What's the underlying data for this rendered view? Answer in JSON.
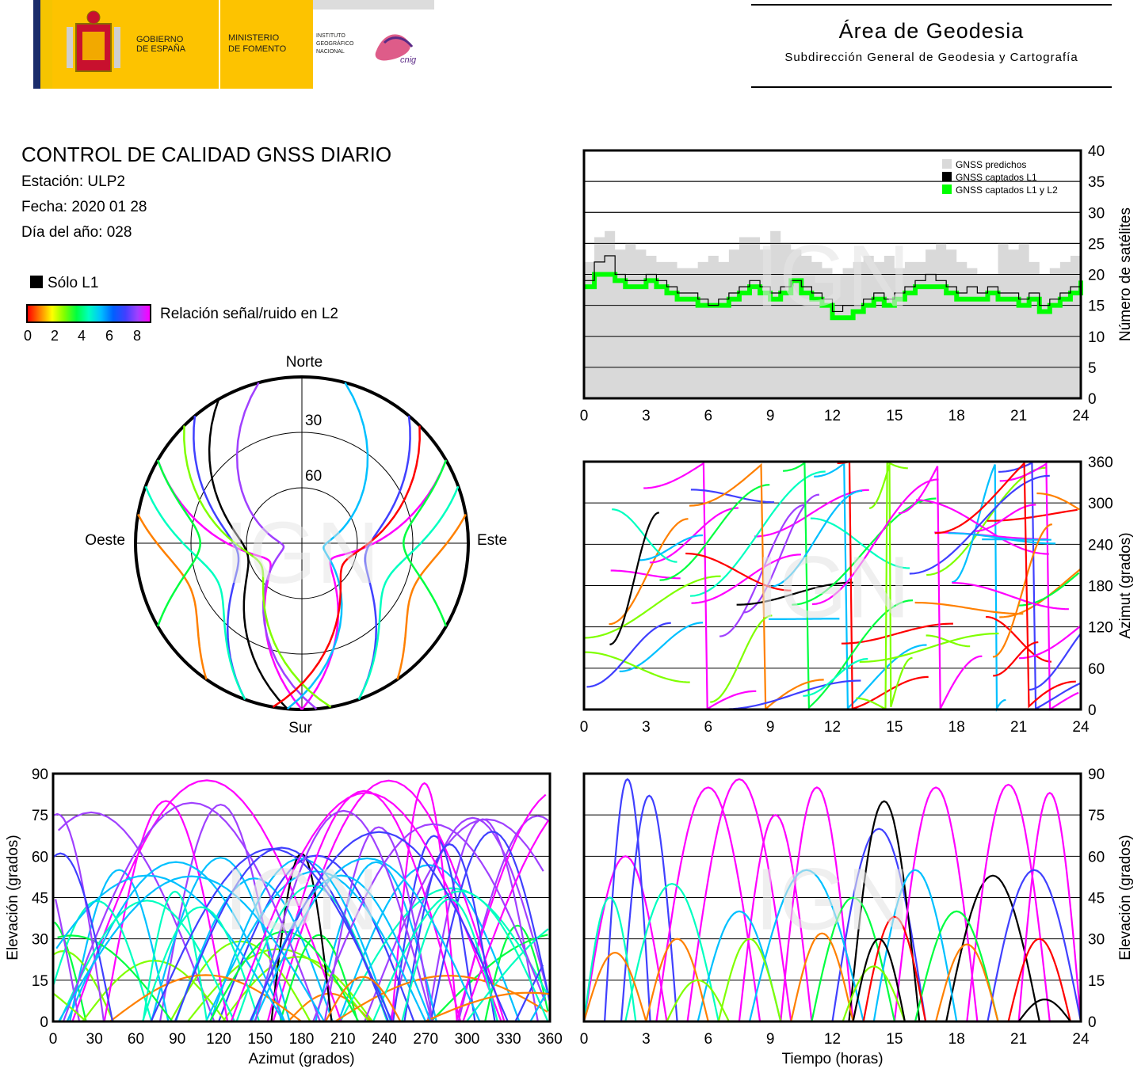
{
  "header": {
    "gov_line1": "GOBIERNO",
    "gov_line2": "DE ESPAÑA",
    "min_line1": "MINISTERIO",
    "min_line2": "DE FOMENTO",
    "inst_line1": "INSTITUTO",
    "inst_line2": "GEOGRÁFICO",
    "inst_line3": "NACIONAL",
    "cnig": "cnig",
    "area_title": "Área de Geodesia",
    "area_subtitle": "Subdirección General de Geodesia y Cartografía"
  },
  "info": {
    "title": "CONTROL DE CALIDAD GNSS DIARIO",
    "station": "Estación: ULP2",
    "date": "Fecha: 2020 01 28",
    "doy": "Día del año: 028",
    "legend_l1": "Sólo L1",
    "snr_label": "Relación señal/ruido en L2",
    "snr_ticks": [
      "0",
      "2",
      "4",
      "6",
      "8"
    ]
  },
  "colors": {
    "predicted": "#d9d9d9",
    "captured_l1": "#000000",
    "captured_l1_l2": "#00ff00",
    "snr_scale": [
      "#ff0000",
      "#ff8000",
      "#ffff00",
      "#80ff00",
      "#00ff40",
      "#00ffc0",
      "#00c0ff",
      "#0060ff",
      "#4040ff",
      "#a040ff",
      "#ff00ff"
    ]
  },
  "watermark": "IGN",
  "chart_data": [
    {
      "type": "area",
      "id": "satellite-count",
      "xlabel": "",
      "ylabel": "Número de satélites",
      "xlim": [
        0,
        24
      ],
      "ylim": [
        0,
        40
      ],
      "xticks": [
        0,
        3,
        6,
        9,
        12,
        15,
        18,
        21,
        24
      ],
      "yticks": [
        0,
        5,
        10,
        15,
        20,
        25,
        30,
        35,
        40
      ],
      "grid": true,
      "legend_position": "top-right",
      "series": [
        {
          "name": "GNSS predichos",
          "x": [
            0,
            0.5,
            1,
            1.5,
            2,
            2.5,
            3,
            3.5,
            4,
            4.5,
            5,
            5.5,
            6,
            6.5,
            7,
            7.5,
            8,
            8.5,
            9,
            9.5,
            10,
            10.5,
            11,
            11.5,
            12,
            12.5,
            13,
            13.5,
            14,
            14.5,
            15,
            15.5,
            16,
            16.5,
            17,
            17.5,
            18,
            18.5,
            19,
            19.5,
            20,
            20.5,
            21,
            21.5,
            22,
            22.5,
            23,
            23.5,
            24
          ],
          "values": [
            22,
            26,
            27,
            24,
            25,
            24,
            23,
            22,
            22,
            21,
            21,
            22,
            23,
            22,
            24,
            26,
            26,
            24,
            27,
            25,
            24,
            23,
            22,
            21,
            20,
            21,
            22,
            23,
            22,
            23,
            21,
            22,
            22,
            24,
            25,
            24,
            22,
            21,
            20,
            20,
            25,
            24,
            25,
            22,
            20,
            21,
            22,
            23,
            21
          ]
        },
        {
          "name": "GNSS captados L1",
          "x": [
            0,
            0.5,
            1,
            1.5,
            2,
            2.5,
            3,
            3.5,
            4,
            4.5,
            5,
            5.5,
            6,
            6.5,
            7,
            7.5,
            8,
            8.5,
            9,
            9.5,
            10,
            10.5,
            11,
            11.5,
            12,
            12.5,
            13,
            13.5,
            14,
            14.5,
            15,
            15.5,
            16,
            16.5,
            17,
            17.5,
            18,
            18.5,
            19,
            19.5,
            20,
            20.5,
            21,
            21.5,
            22,
            22.5,
            23,
            23.5,
            24
          ],
          "values": [
            19,
            22,
            23,
            20,
            19,
            19,
            20,
            19,
            18,
            17,
            17,
            16,
            15,
            16,
            17,
            18,
            19,
            18,
            17,
            18,
            19,
            18,
            17,
            16,
            14,
            15,
            15,
            16,
            17,
            16,
            17,
            18,
            19,
            20,
            19,
            18,
            17,
            18,
            17,
            18,
            17,
            17,
            16,
            17,
            15,
            16,
            17,
            18,
            20
          ]
        },
        {
          "name": "GNSS captados L1 y L2",
          "x": [
            0,
            0.5,
            1,
            1.5,
            2,
            2.5,
            3,
            3.5,
            4,
            4.5,
            5,
            5.5,
            6,
            6.5,
            7,
            7.5,
            8,
            8.5,
            9,
            9.5,
            10,
            10.5,
            11,
            11.5,
            12,
            12.5,
            13,
            13.5,
            14,
            14.5,
            15,
            15.5,
            16,
            16.5,
            17,
            17.5,
            18,
            18.5,
            19,
            19.5,
            20,
            20.5,
            21,
            21.5,
            22,
            22.5,
            23,
            23.5,
            24
          ],
          "values": [
            18,
            20,
            20,
            19,
            18,
            18,
            19,
            18,
            17,
            16,
            16,
            15,
            15,
            15,
            16,
            17,
            18,
            17,
            16,
            17,
            19,
            17,
            16,
            15,
            13,
            13,
            14,
            15,
            16,
            15,
            16,
            17,
            18,
            18,
            18,
            17,
            16,
            16,
            16,
            17,
            16,
            16,
            15,
            16,
            14,
            15,
            16,
            17,
            19
          ]
        }
      ]
    },
    {
      "type": "scatter",
      "id": "skyplot",
      "labels": {
        "north": "Norte",
        "south": "Sur",
        "east": "Este",
        "west": "Oeste"
      },
      "rings": [
        "30",
        "60"
      ],
      "arc_paths": [
        {
          "az0": 300,
          "az1": 180,
          "el_peak": 70,
          "snr": 8
        },
        {
          "az0": 60,
          "az1": 180,
          "el_peak": 72,
          "snr": 8
        },
        {
          "az0": 320,
          "az1": 200,
          "el_peak": 55,
          "snr": 6
        },
        {
          "az0": 40,
          "az1": 160,
          "el_peak": 55,
          "snr": 6
        },
        {
          "az0": 290,
          "az1": 200,
          "el_peak": 40,
          "snr": 4
        },
        {
          "az0": 70,
          "az1": 160,
          "el_peak": 40,
          "snr": 4
        },
        {
          "az0": 280,
          "az1": 215,
          "el_peak": 25,
          "snr": 1
        },
        {
          "az0": 80,
          "az1": 145,
          "el_peak": 25,
          "snr": 1
        },
        {
          "az0": 330,
          "az1": 185,
          "el_peak": 60,
          "snr": -1
        },
        {
          "az0": 345,
          "az1": 175,
          "el_peak": 80,
          "snr": 7
        },
        {
          "az0": 15,
          "az1": 185,
          "el_peak": 78,
          "snr": 5
        },
        {
          "az0": 300,
          "az1": 240,
          "el_peak": 35,
          "snr": 3
        },
        {
          "az0": 60,
          "az1": 120,
          "el_peak": 35,
          "snr": 3
        },
        {
          "az0": 315,
          "az1": 170,
          "el_peak": 65,
          "snr": 2
        },
        {
          "az0": 45,
          "az1": 190,
          "el_peak": 65,
          "snr": 0
        }
      ]
    },
    {
      "type": "scatter",
      "id": "azimuth-time",
      "xlabel": "",
      "ylabel": "Azimut (grados)",
      "xlim": [
        0,
        24
      ],
      "ylim": [
        0,
        360
      ],
      "xticks": [
        0,
        3,
        6,
        9,
        12,
        15,
        18,
        21,
        24
      ],
      "yticks": [
        0,
        60,
        120,
        180,
        240,
        300,
        360
      ],
      "grid": true
    },
    {
      "type": "scatter",
      "id": "elevation-azimuth",
      "xlabel": "Azimut (grados)",
      "ylabel": "Elevación (grados)",
      "xlim": [
        0,
        360
      ],
      "ylim": [
        0,
        90
      ],
      "xticks": [
        0,
        30,
        60,
        90,
        120,
        150,
        180,
        210,
        240,
        270,
        300,
        330,
        360
      ],
      "yticks": [
        0,
        15,
        30,
        45,
        60,
        75,
        90
      ],
      "grid": true
    },
    {
      "type": "line",
      "id": "elevation-time",
      "xlabel": "Tiempo (horas)",
      "ylabel": "Elevación (grados)",
      "xlim": [
        0,
        24
      ],
      "ylim": [
        0,
        90
      ],
      "xticks": [
        0,
        3,
        6,
        9,
        12,
        15,
        18,
        21,
        24
      ],
      "yticks": [
        0,
        15,
        30,
        45,
        60,
        75,
        90
      ],
      "grid": true,
      "passes": [
        {
          "start": 0.0,
          "end": 4.0,
          "peak": 60,
          "snr": 8
        },
        {
          "start": 1.0,
          "end": 3.2,
          "peak": 88,
          "snr": 6
        },
        {
          "start": 1.8,
          "end": 4.5,
          "peak": 82,
          "snr": 6
        },
        {
          "start": 3.5,
          "end": 8.5,
          "peak": 85,
          "snr": 8
        },
        {
          "start": 5.0,
          "end": 10.0,
          "peak": 88,
          "snr": 8
        },
        {
          "start": 7.5,
          "end": 11.0,
          "peak": 75,
          "snr": 8
        },
        {
          "start": 9.5,
          "end": 13.0,
          "peak": 85,
          "snr": 8
        },
        {
          "start": 12.0,
          "end": 16.5,
          "peak": 70,
          "snr": 6
        },
        {
          "start": 12.8,
          "end": 16.2,
          "peak": 80,
          "snr": -1
        },
        {
          "start": 15.0,
          "end": 19.0,
          "peak": 85,
          "snr": 8
        },
        {
          "start": 17.5,
          "end": 22.0,
          "peak": 53,
          "snr": -1
        },
        {
          "start": 18.5,
          "end": 22.5,
          "peak": 86,
          "snr": 8
        },
        {
          "start": 21.0,
          "end": 24.0,
          "peak": 83,
          "snr": 8
        },
        {
          "start": 0.0,
          "end": 2.5,
          "peak": 45,
          "snr": 4
        },
        {
          "start": 2.0,
          "end": 6.5,
          "peak": 50,
          "snr": 4
        },
        {
          "start": 5.5,
          "end": 9.5,
          "peak": 40,
          "snr": 5
        },
        {
          "start": 8.0,
          "end": 13.5,
          "peak": 55,
          "snr": 5
        },
        {
          "start": 11.0,
          "end": 15.0,
          "peak": 45,
          "snr": 3
        },
        {
          "start": 14.0,
          "end": 18.0,
          "peak": 55,
          "snr": 5
        },
        {
          "start": 16.0,
          "end": 20.0,
          "peak": 40,
          "snr": 3
        },
        {
          "start": 19.5,
          "end": 24.0,
          "peak": 55,
          "snr": 6
        },
        {
          "start": 0.0,
          "end": 3.0,
          "peak": 25,
          "snr": 1
        },
        {
          "start": 3.0,
          "end": 6.0,
          "peak": 30,
          "snr": 1
        },
        {
          "start": 6.5,
          "end": 9.5,
          "peak": 30,
          "snr": 2
        },
        {
          "start": 10.0,
          "end": 13.0,
          "peak": 32,
          "snr": 1
        },
        {
          "start": 13.5,
          "end": 16.5,
          "peak": 38,
          "snr": 0
        },
        {
          "start": 17.0,
          "end": 20.0,
          "peak": 28,
          "snr": 1
        },
        {
          "start": 20.5,
          "end": 23.5,
          "peak": 30,
          "snr": 0
        },
        {
          "start": 4.0,
          "end": 7.0,
          "peak": 15,
          "snr": 2
        },
        {
          "start": 12.5,
          "end": 15.5,
          "peak": 20,
          "snr": 2
        },
        {
          "start": 21.0,
          "end": 23.5,
          "peak": 8,
          "snr": -1
        },
        {
          "start": 13.0,
          "end": 15.5,
          "peak": 30,
          "snr": -1
        }
      ]
    }
  ]
}
